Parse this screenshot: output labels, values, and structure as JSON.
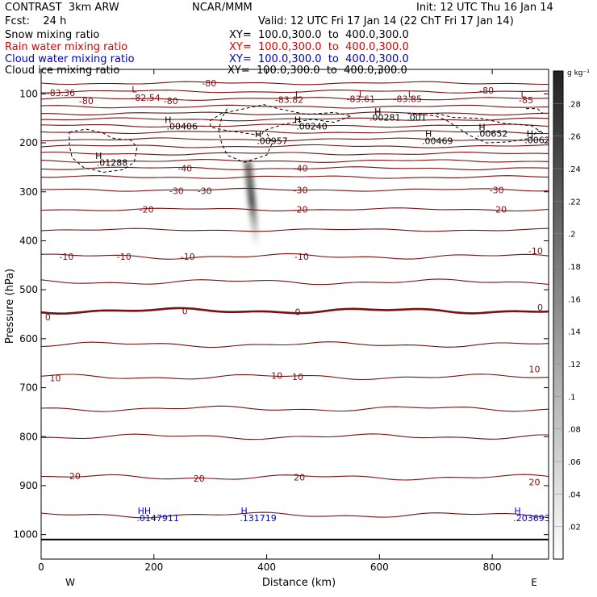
{
  "header": {
    "model": "CONTRAST  3km ARW",
    "center": "NCAR/MMM",
    "init": "Init: 12 UTC Thu 16 Jan 14",
    "fcst": "Fcst:    24 h",
    "valid": "Valid: 12 UTC Fri 17 Jan 14 (22 ChT Fri 17 Jan 14)"
  },
  "fields": [
    {
      "name": "Snow mixing ratio",
      "xy": "XY=  100.0,300.0  to  400.0,300.0",
      "color": "#000000"
    },
    {
      "name": "Rain water mixing ratio",
      "xy": "XY=  100.0,300.0  to  400.0,300.0",
      "color": "#dd0000"
    },
    {
      "name": "Cloud water mixing ratio",
      "xy": "XY=  100.0,300.0  to  400.0,300.0",
      "color": "#0000cc"
    },
    {
      "name": "Cloud ice mixing ratio",
      "xy": "XY=  100.0,300.0  to  400.0,300.0",
      "color": "#000000"
    }
  ],
  "colors": {
    "temp_contour": "#7a1010",
    "cloud_water": "#0000cc",
    "text": "#000000"
  },
  "chart_data": {
    "type": "cross-section",
    "xlabel": "Distance (km)",
    "ylabel": "Pressure (hPa)",
    "xlim": [
      0,
      900
    ],
    "ylim": [
      1050,
      50
    ],
    "x_ticks": [
      "0",
      "200",
      "400",
      "600",
      "800"
    ],
    "x_tick_values": [
      0,
      200,
      400,
      600,
      800
    ],
    "y_ticks": [
      "100",
      "200",
      "300",
      "400",
      "500",
      "600",
      "700",
      "800",
      "900",
      "1000"
    ],
    "y_tick_values": [
      100,
      200,
      300,
      400,
      500,
      600,
      700,
      800,
      900,
      1000
    ],
    "endpoints": {
      "left": "W",
      "right": "E"
    },
    "ground_pressure": 1010,
    "colorbar": {
      "units": "g kg⁻¹",
      "ticks": [
        ".02",
        ".04",
        ".06",
        ".08",
        ".1",
        ".12",
        ".14",
        ".16",
        ".18",
        ".2",
        ".22",
        ".24",
        ".26",
        ".28"
      ],
      "tick_values": [
        0.02,
        0.04,
        0.06,
        0.08,
        0.1,
        0.12,
        0.14,
        0.16,
        0.18,
        0.2,
        0.22,
        0.24,
        0.26,
        0.28
      ],
      "max": 0.3
    },
    "temperature_contours": [
      {
        "p": 78,
        "label": "-80"
      },
      {
        "p": 95,
        "label": "-80"
      },
      {
        "p": 110,
        "label": "-80"
      },
      {
        "p": 126,
        "label": ""
      },
      {
        "p": 140,
        "label": ""
      },
      {
        "p": 152,
        "label": ""
      },
      {
        "p": 165,
        "label": ""
      },
      {
        "p": 178,
        "label": ""
      },
      {
        "p": 193,
        "label": ""
      },
      {
        "p": 207,
        "label": ""
      },
      {
        "p": 222,
        "label": ""
      },
      {
        "p": 237,
        "label": ""
      },
      {
        "p": 252,
        "label": "-40"
      },
      {
        "p": 270,
        "label": ""
      },
      {
        "p": 296,
        "label": "-30"
      },
      {
        "p": 336,
        "label": "-20"
      },
      {
        "p": 378,
        "label": ""
      },
      {
        "p": 432,
        "label": "-10"
      },
      {
        "p": 484,
        "label": ""
      },
      {
        "p": 543,
        "label": "0",
        "bold": true
      },
      {
        "p": 612,
        "label": ""
      },
      {
        "p": 678,
        "label": "10"
      },
      {
        "p": 743,
        "label": ""
      },
      {
        "p": 800,
        "label": ""
      },
      {
        "p": 883,
        "label": "20"
      },
      {
        "p": 960,
        "label": ""
      }
    ],
    "contour_labels": [
      {
        "x": 35,
        "p": 98,
        "text": "-83.36"
      },
      {
        "x": 80,
        "p": 114,
        "text": "-80"
      },
      {
        "x": 186,
        "p": 108,
        "text": "-82.54"
      },
      {
        "x": 165,
        "p": 90,
        "text": "L"
      },
      {
        "x": 298,
        "p": 78,
        "text": "-80"
      },
      {
        "x": 230,
        "p": 114,
        "text": "-80"
      },
      {
        "x": 440,
        "p": 112,
        "text": "-83.82"
      },
      {
        "x": 455,
        "p": 101,
        "text": "L"
      },
      {
        "x": 567,
        "p": 110,
        "text": "-83.61"
      },
      {
        "x": 568,
        "p": 100,
        "text": "L"
      },
      {
        "x": 650,
        "p": 110,
        "text": "-83.85"
      },
      {
        "x": 655,
        "p": 100,
        "text": "L"
      },
      {
        "x": 790,
        "p": 93,
        "text": "-80"
      },
      {
        "x": 860,
        "p": 113,
        "text": "-85"
      },
      {
        "x": 855,
        "p": 100,
        "text": "L"
      },
      {
        "x": 225,
        "p": 153,
        "text": "H"
      },
      {
        "x": 250,
        "p": 166,
        "text": ".00406"
      },
      {
        "x": 455,
        "p": 153,
        "text": "H"
      },
      {
        "x": 480,
        "p": 166,
        "text": ".00240"
      },
      {
        "x": 597,
        "p": 136,
        "text": "H"
      },
      {
        "x": 610,
        "p": 148,
        "text": ".00281"
      },
      {
        "x": 666,
        "p": 148,
        "text": ".001"
      },
      {
        "x": 782,
        "p": 168,
        "text": "H"
      },
      {
        "x": 800,
        "p": 181,
        "text": ".00652"
      },
      {
        "x": 687,
        "p": 181,
        "text": "H"
      },
      {
        "x": 703,
        "p": 196,
        "text": ".00469"
      },
      {
        "x": 867,
        "p": 181,
        "text": "H"
      },
      {
        "x": 880,
        "p": 194,
        "text": ".0062"
      },
      {
        "x": 385,
        "p": 182,
        "text": "H"
      },
      {
        "x": 410,
        "p": 196,
        "text": ".00957"
      },
      {
        "x": 102,
        "p": 226,
        "text": "H"
      },
      {
        "x": 126,
        "p": 240,
        "text": ".01288"
      },
      {
        "x": 255,
        "p": 252,
        "text": "-40"
      },
      {
        "x": 460,
        "p": 252,
        "text": "-40"
      },
      {
        "x": 240,
        "p": 298,
        "text": "-30"
      },
      {
        "x": 290,
        "p": 298,
        "text": "-30"
      },
      {
        "x": 460,
        "p": 296,
        "text": "-30"
      },
      {
        "x": 808,
        "p": 296,
        "text": "-30"
      },
      {
        "x": 187,
        "p": 336,
        "text": "-20"
      },
      {
        "x": 460,
        "p": 336,
        "text": "-20"
      },
      {
        "x": 813,
        "p": 336,
        "text": "-20"
      },
      {
        "x": 45,
        "p": 432,
        "text": "-10"
      },
      {
        "x": 147,
        "p": 432,
        "text": "-10"
      },
      {
        "x": 260,
        "p": 432,
        "text": "-10"
      },
      {
        "x": 462,
        "p": 432,
        "text": "-10"
      },
      {
        "x": 877,
        "p": 421,
        "text": "-10"
      },
      {
        "x": 12,
        "p": 556,
        "text": "0"
      },
      {
        "x": 255,
        "p": 543,
        "text": "0"
      },
      {
        "x": 455,
        "p": 545,
        "text": "0"
      },
      {
        "x": 885,
        "p": 536,
        "text": "0"
      },
      {
        "x": 25,
        "p": 680,
        "text": "10"
      },
      {
        "x": 418,
        "p": 675,
        "text": "10"
      },
      {
        "x": 455,
        "p": 678,
        "text": "10"
      },
      {
        "x": 875,
        "p": 662,
        "text": "10"
      },
      {
        "x": 60,
        "p": 880,
        "text": "20"
      },
      {
        "x": 280,
        "p": 885,
        "text": "20"
      },
      {
        "x": 458,
        "p": 883,
        "text": "20"
      },
      {
        "x": 875,
        "p": 893,
        "text": "20"
      }
    ],
    "cloud_water_labels": [
      {
        "x": 183,
        "p": 951,
        "text": "HH"
      },
      {
        "x": 207,
        "p": 966,
        "text": ".0147911"
      },
      {
        "x": 360,
        "p": 951,
        "text": "H"
      },
      {
        "x": 385,
        "p": 966,
        "text": ".131719"
      },
      {
        "x": 845,
        "p": 951,
        "text": "H"
      },
      {
        "x": 870,
        "p": 966,
        "text": ".203693"
      }
    ],
    "cloud_ice_regions": [
      {
        "name": "left-cloud",
        "points": [
          [
            50,
            178
          ],
          [
            80,
            172
          ],
          [
            110,
            180
          ],
          [
            125,
            190
          ],
          [
            160,
            195
          ],
          [
            170,
            210
          ],
          [
            165,
            240
          ],
          [
            145,
            255
          ],
          [
            110,
            260
          ],
          [
            75,
            250
          ],
          [
            55,
            230
          ],
          [
            50,
            205
          ],
          [
            50,
            178
          ]
        ]
      },
      {
        "name": "center-cloud",
        "points": [
          [
            345,
            134
          ],
          [
            370,
            128
          ],
          [
            395,
            122
          ],
          [
            420,
            130
          ],
          [
            470,
            142
          ],
          [
            520,
            138
          ],
          [
            550,
            145
          ],
          [
            520,
            158
          ],
          [
            480,
            152
          ],
          [
            430,
            162
          ],
          [
            395,
            175
          ],
          [
            390,
            185
          ],
          [
            360,
            180
          ],
          [
            330,
            175
          ],
          [
            300,
            168
          ],
          [
            300,
            155
          ],
          [
            320,
            140
          ],
          [
            345,
            134
          ]
        ]
      },
      {
        "name": "upper-contrail",
        "points": [
          [
            330,
            130
          ],
          [
            320,
            150
          ],
          [
            315,
            175
          ],
          [
            320,
            200
          ],
          [
            330,
            225
          ],
          [
            360,
            240
          ],
          [
            400,
            225
          ],
          [
            410,
            200
          ],
          [
            400,
            180
          ]
        ]
      },
      {
        "name": "right-cloud",
        "points": [
          [
            650,
            140
          ],
          [
            700,
            145
          ],
          [
            720,
            155
          ],
          [
            740,
            170
          ],
          [
            760,
            185
          ],
          [
            790,
            200
          ],
          [
            830,
            198
          ],
          [
            870,
            190
          ],
          [
            880,
            175
          ],
          [
            890,
            180
          ],
          [
            870,
            165
          ],
          [
            820,
            160
          ],
          [
            780,
            150
          ],
          [
            730,
            148
          ],
          [
            700,
            140
          ],
          [
            650,
            140
          ]
        ]
      },
      {
        "name": "far-right-cloud",
        "points": [
          [
            860,
            130
          ],
          [
            880,
            130
          ],
          [
            890,
            140
          ]
        ]
      }
    ],
    "snow_plume": {
      "x_top": 365,
      "p_top": 238,
      "x_bottom": 380,
      "p_bottom": 405,
      "max_value": 0.22
    }
  }
}
